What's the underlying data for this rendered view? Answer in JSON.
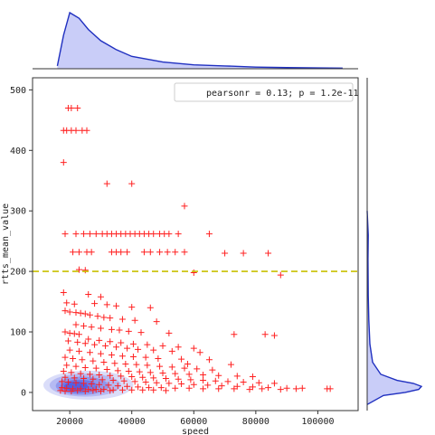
{
  "chart_data": {
    "type": "scatter",
    "variant": "jointplot with KDE density and marginal distributions",
    "xlabel": "speed",
    "ylabel": "rtts_mean_value",
    "xlim": [
      8000,
      113000
    ],
    "ylim": [
      -30,
      520
    ],
    "x_ticks": [
      20000,
      40000,
      60000,
      80000,
      100000
    ],
    "y_ticks": [
      0,
      100,
      200,
      300,
      400,
      500
    ],
    "x_tick_labels": [
      "20000",
      "40000",
      "60000",
      "80000",
      "100000"
    ],
    "y_tick_labels": [
      "0",
      "100",
      "200",
      "300",
      "400",
      "500"
    ],
    "annotation": "pearsonr = 0.13; p = 1.2e-11",
    "annotation_position": "top-right",
    "reference_line": {
      "y": 200,
      "style": "dashed",
      "color": "#c9c000"
    },
    "marker": "+",
    "marker_color": "#ff2020",
    "density_color": "#3040e0",
    "grid": false,
    "points": [
      [
        19500,
        470
      ],
      [
        20500,
        470
      ],
      [
        22500,
        470
      ],
      [
        18000,
        433
      ],
      [
        19000,
        433
      ],
      [
        20500,
        433
      ],
      [
        22000,
        433
      ],
      [
        24000,
        433
      ],
      [
        25500,
        433
      ],
      [
        18000,
        380
      ],
      [
        32000,
        345
      ],
      [
        40000,
        345
      ],
      [
        57000,
        308
      ],
      [
        18500,
        262
      ],
      [
        22000,
        262
      ],
      [
        24500,
        262
      ],
      [
        26500,
        262
      ],
      [
        28500,
        262
      ],
      [
        30500,
        262
      ],
      [
        32000,
        262
      ],
      [
        33500,
        262
      ],
      [
        35000,
        262
      ],
      [
        36500,
        262
      ],
      [
        38000,
        262
      ],
      [
        39500,
        262
      ],
      [
        41000,
        262
      ],
      [
        42500,
        262
      ],
      [
        44000,
        262
      ],
      [
        45500,
        262
      ],
      [
        47000,
        262
      ],
      [
        49000,
        262
      ],
      [
        50500,
        262
      ],
      [
        52000,
        262
      ],
      [
        55000,
        262
      ],
      [
        65000,
        262
      ],
      [
        21000,
        232
      ],
      [
        23000,
        232
      ],
      [
        25500,
        232
      ],
      [
        27000,
        232
      ],
      [
        33500,
        232
      ],
      [
        35000,
        232
      ],
      [
        36500,
        232
      ],
      [
        38500,
        232
      ],
      [
        44000,
        232
      ],
      [
        46000,
        232
      ],
      [
        49000,
        232
      ],
      [
        51500,
        232
      ],
      [
        54000,
        232
      ],
      [
        57000,
        232
      ],
      [
        70000,
        230
      ],
      [
        76000,
        230
      ],
      [
        84000,
        230
      ],
      [
        23000,
        203
      ],
      [
        25000,
        202
      ],
      [
        60000,
        198
      ],
      [
        88000,
        194
      ],
      [
        18000,
        165
      ],
      [
        26000,
        162
      ],
      [
        30000,
        158
      ],
      [
        19000,
        148
      ],
      [
        21500,
        146
      ],
      [
        28000,
        147
      ],
      [
        32000,
        145
      ],
      [
        35000,
        143
      ],
      [
        40000,
        141
      ],
      [
        46000,
        140
      ],
      [
        18500,
        135
      ],
      [
        20000,
        133
      ],
      [
        22000,
        132
      ],
      [
        23500,
        131
      ],
      [
        25000,
        130
      ],
      [
        26500,
        128
      ],
      [
        29000,
        126
      ],
      [
        31000,
        124
      ],
      [
        33000,
        123
      ],
      [
        37000,
        121
      ],
      [
        41000,
        119
      ],
      [
        48000,
        117
      ],
      [
        22000,
        112
      ],
      [
        24500,
        110
      ],
      [
        27000,
        108
      ],
      [
        30000,
        106
      ],
      [
        33500,
        104
      ],
      [
        36000,
        103
      ],
      [
        39000,
        101
      ],
      [
        43000,
        99
      ],
      [
        52000,
        98
      ],
      [
        73000,
        96
      ],
      [
        83000,
        96
      ],
      [
        86000,
        94
      ],
      [
        18500,
        100
      ],
      [
        20000,
        98
      ],
      [
        21500,
        97
      ],
      [
        23000,
        96
      ],
      [
        26000,
        88
      ],
      [
        29500,
        86
      ],
      [
        33000,
        84
      ],
      [
        36500,
        82
      ],
      [
        40500,
        80
      ],
      [
        45000,
        79
      ],
      [
        50000,
        77
      ],
      [
        55000,
        75
      ],
      [
        60000,
        73
      ],
      [
        19500,
        85
      ],
      [
        22500,
        83
      ],
      [
        25000,
        81
      ],
      [
        28000,
        79
      ],
      [
        31500,
        77
      ],
      [
        35000,
        75
      ],
      [
        38500,
        73
      ],
      [
        42000,
        71
      ],
      [
        47000,
        70
      ],
      [
        53000,
        68
      ],
      [
        62000,
        66
      ],
      [
        20000,
        70
      ],
      [
        23000,
        68
      ],
      [
        26500,
        66
      ],
      [
        30000,
        64
      ],
      [
        33500,
        62
      ],
      [
        37000,
        60
      ],
      [
        40500,
        59
      ],
      [
        44500,
        58
      ],
      [
        48500,
        56
      ],
      [
        56000,
        55
      ],
      [
        65000,
        54
      ],
      [
        58000,
        47
      ],
      [
        72000,
        46
      ],
      [
        18500,
        58
      ],
      [
        21000,
        56
      ],
      [
        24000,
        54
      ],
      [
        27500,
        52
      ],
      [
        31000,
        50
      ],
      [
        34500,
        48
      ],
      [
        38000,
        47
      ],
      [
        41500,
        46
      ],
      [
        45000,
        45
      ],
      [
        49000,
        43
      ],
      [
        53000,
        42
      ],
      [
        57000,
        40
      ],
      [
        61000,
        39
      ],
      [
        66000,
        37
      ],
      [
        19000,
        45
      ],
      [
        22000,
        43
      ],
      [
        25000,
        41
      ],
      [
        28500,
        40
      ],
      [
        32000,
        38
      ],
      [
        35500,
        36
      ],
      [
        39000,
        35
      ],
      [
        42500,
        34
      ],
      [
        46000,
        33
      ],
      [
        50000,
        32
      ],
      [
        54000,
        31
      ],
      [
        58500,
        30
      ],
      [
        63000,
        29
      ],
      [
        68000,
        28
      ],
      [
        74000,
        27
      ],
      [
        79000,
        26
      ],
      [
        18000,
        35
      ],
      [
        20500,
        33
      ],
      [
        23500,
        31
      ],
      [
        26500,
        30
      ],
      [
        29500,
        29
      ],
      [
        33000,
        28
      ],
      [
        36500,
        27
      ],
      [
        40000,
        26
      ],
      [
        43500,
        25
      ],
      [
        47000,
        24
      ],
      [
        51000,
        23
      ],
      [
        55000,
        22
      ],
      [
        59000,
        21
      ],
      [
        63000,
        20
      ],
      [
        67000,
        19
      ],
      [
        71000,
        18
      ],
      [
        76000,
        17
      ],
      [
        81000,
        16
      ],
      [
        86000,
        15
      ],
      [
        18500,
        25
      ],
      [
        21500,
        24
      ],
      [
        24500,
        23
      ],
      [
        27500,
        22
      ],
      [
        30500,
        21
      ],
      [
        34000,
        20
      ],
      [
        37500,
        19
      ],
      [
        41000,
        18
      ],
      [
        44500,
        17
      ],
      [
        48000,
        16
      ],
      [
        52000,
        15
      ],
      [
        56000,
        14
      ],
      [
        60000,
        13
      ],
      [
        64500,
        12
      ],
      [
        69000,
        11
      ],
      [
        74000,
        10
      ],
      [
        79000,
        9
      ],
      [
        84000,
        8
      ],
      [
        90000,
        7
      ],
      [
        17500,
        18
      ],
      [
        19500,
        17
      ],
      [
        22000,
        16
      ],
      [
        24500,
        15
      ],
      [
        27000,
        14
      ],
      [
        29500,
        13
      ],
      [
        32500,
        12
      ],
      [
        35500,
        11
      ],
      [
        38500,
        10
      ],
      [
        42000,
        9
      ],
      [
        45500,
        8
      ],
      [
        49500,
        8
      ],
      [
        54000,
        7
      ],
      [
        58500,
        7
      ],
      [
        63000,
        6
      ],
      [
        68000,
        6
      ],
      [
        73000,
        6
      ],
      [
        78000,
        5
      ],
      [
        82000,
        6
      ],
      [
        88000,
        5
      ],
      [
        93000,
        6
      ],
      [
        95000,
        7
      ],
      [
        103000,
        6
      ],
      [
        104000,
        6
      ],
      [
        17500,
        8
      ],
      [
        19000,
        7
      ],
      [
        21000,
        6
      ],
      [
        23500,
        6
      ],
      [
        26000,
        5
      ],
      [
        28500,
        5
      ],
      [
        31000,
        5
      ],
      [
        34000,
        4
      ],
      [
        37000,
        4
      ],
      [
        40000,
        4
      ],
      [
        43500,
        4
      ],
      [
        47000,
        4
      ],
      [
        51000,
        3
      ],
      [
        17000,
        3
      ],
      [
        18500,
        2
      ],
      [
        20500,
        2
      ],
      [
        22500,
        3
      ],
      [
        25000,
        2
      ],
      [
        27500,
        3
      ],
      [
        30000,
        2
      ],
      [
        33000,
        3
      ]
    ],
    "density_contours": [
      {
        "cx": 26000,
        "cy": 12,
        "rx": 14500,
        "ry": 24,
        "opacity": 0.18
      },
      {
        "cx": 25000,
        "cy": 12,
        "rx": 11500,
        "ry": 19,
        "opacity": 0.22
      },
      {
        "cx": 24000,
        "cy": 11,
        "rx": 8500,
        "ry": 15,
        "opacity": 0.28
      },
      {
        "cx": 23000,
        "cy": 10,
        "rx": 6000,
        "ry": 11,
        "opacity": 0.35
      },
      {
        "cx": 22000,
        "cy": 10,
        "rx": 3800,
        "ry": 8,
        "opacity": 0.45
      }
    ],
    "marginal_x": {
      "x": [
        16000,
        18000,
        20000,
        23000,
        26000,
        30000,
        35000,
        40000,
        50000,
        60000,
        70000,
        80000,
        90000,
        100000,
        108000
      ],
      "density": [
        0.05,
        0.6,
        1.0,
        0.9,
        0.7,
        0.5,
        0.34,
        0.22,
        0.12,
        0.07,
        0.05,
        0.03,
        0.02,
        0.015,
        0.01
      ]
    },
    "marginal_y": {
      "y": [
        -20,
        -5,
        0,
        5,
        10,
        15,
        20,
        30,
        50,
        80,
        120,
        160,
        220,
        260,
        300
      ],
      "density": [
        0.0,
        0.3,
        0.7,
        0.95,
        1.0,
        0.85,
        0.55,
        0.25,
        0.1,
        0.05,
        0.03,
        0.02,
        0.015,
        0.02,
        0.0
      ]
    }
  }
}
